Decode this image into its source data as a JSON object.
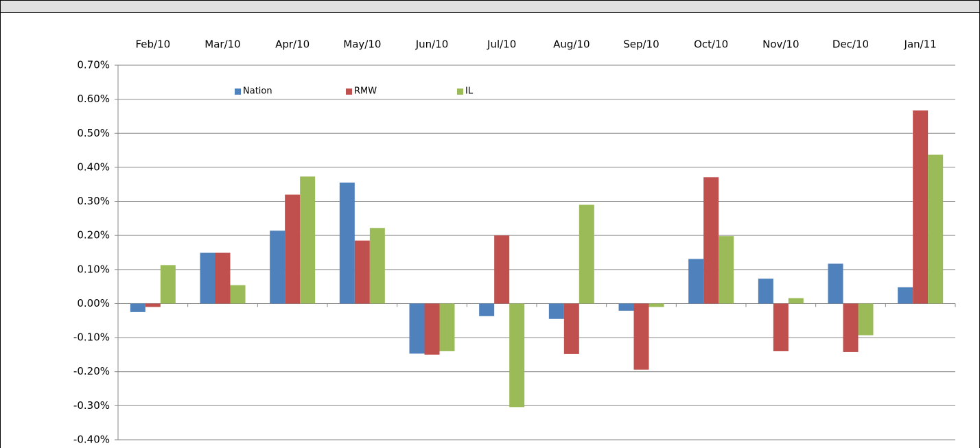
{
  "chart_data": {
    "type": "bar",
    "categories": [
      "Feb/10",
      "Mar/10",
      "Apr/10",
      "May/10",
      "Jun/10",
      "Jul/10",
      "Aug/10",
      "Sep/10",
      "Oct/10",
      "Nov/10",
      "Dec/10",
      "Jan/11"
    ],
    "series": [
      {
        "name": "Nation",
        "color": "#4f81bd",
        "values": [
          -0.025,
          0.149,
          0.214,
          0.355,
          -0.147,
          -0.037,
          -0.045,
          -0.021,
          0.131,
          0.073,
          0.117,
          0.048
        ]
      },
      {
        "name": "RMW",
        "color": "#c0504d",
        "values": [
          -0.01,
          0.149,
          0.32,
          0.185,
          -0.15,
          0.2,
          -0.148,
          -0.194,
          0.371,
          -0.14,
          -0.142,
          0.567
        ]
      },
      {
        "name": "IL",
        "color": "#9bbb59",
        "values": [
          0.113,
          0.054,
          0.373,
          0.222,
          -0.14,
          -0.304,
          0.29,
          -0.01,
          0.198,
          0.016,
          -0.093,
          0.437
        ]
      }
    ],
    "ylim": [
      -0.4,
      0.7
    ],
    "yticks": [
      {
        "value": -0.4,
        "label": "-0.40%"
      },
      {
        "value": -0.3,
        "label": "-0.30%"
      },
      {
        "value": -0.2,
        "label": "-0.20%"
      },
      {
        "value": -0.1,
        "label": "-0.10%"
      },
      {
        "value": 0,
        "label": "0.00%"
      },
      {
        "value": 0.1,
        "label": "0.10%"
      },
      {
        "value": 0.2,
        "label": "0.20%"
      },
      {
        "value": 0.3,
        "label": "0.30%"
      },
      {
        "value": 0.4,
        "label": "0.40%"
      },
      {
        "value": 0.5,
        "label": "0.50%"
      },
      {
        "value": 0.6,
        "label": "0.60%"
      },
      {
        "value": 0.7,
        "label": "0.70%"
      }
    ],
    "grid": true,
    "legend": "top"
  }
}
